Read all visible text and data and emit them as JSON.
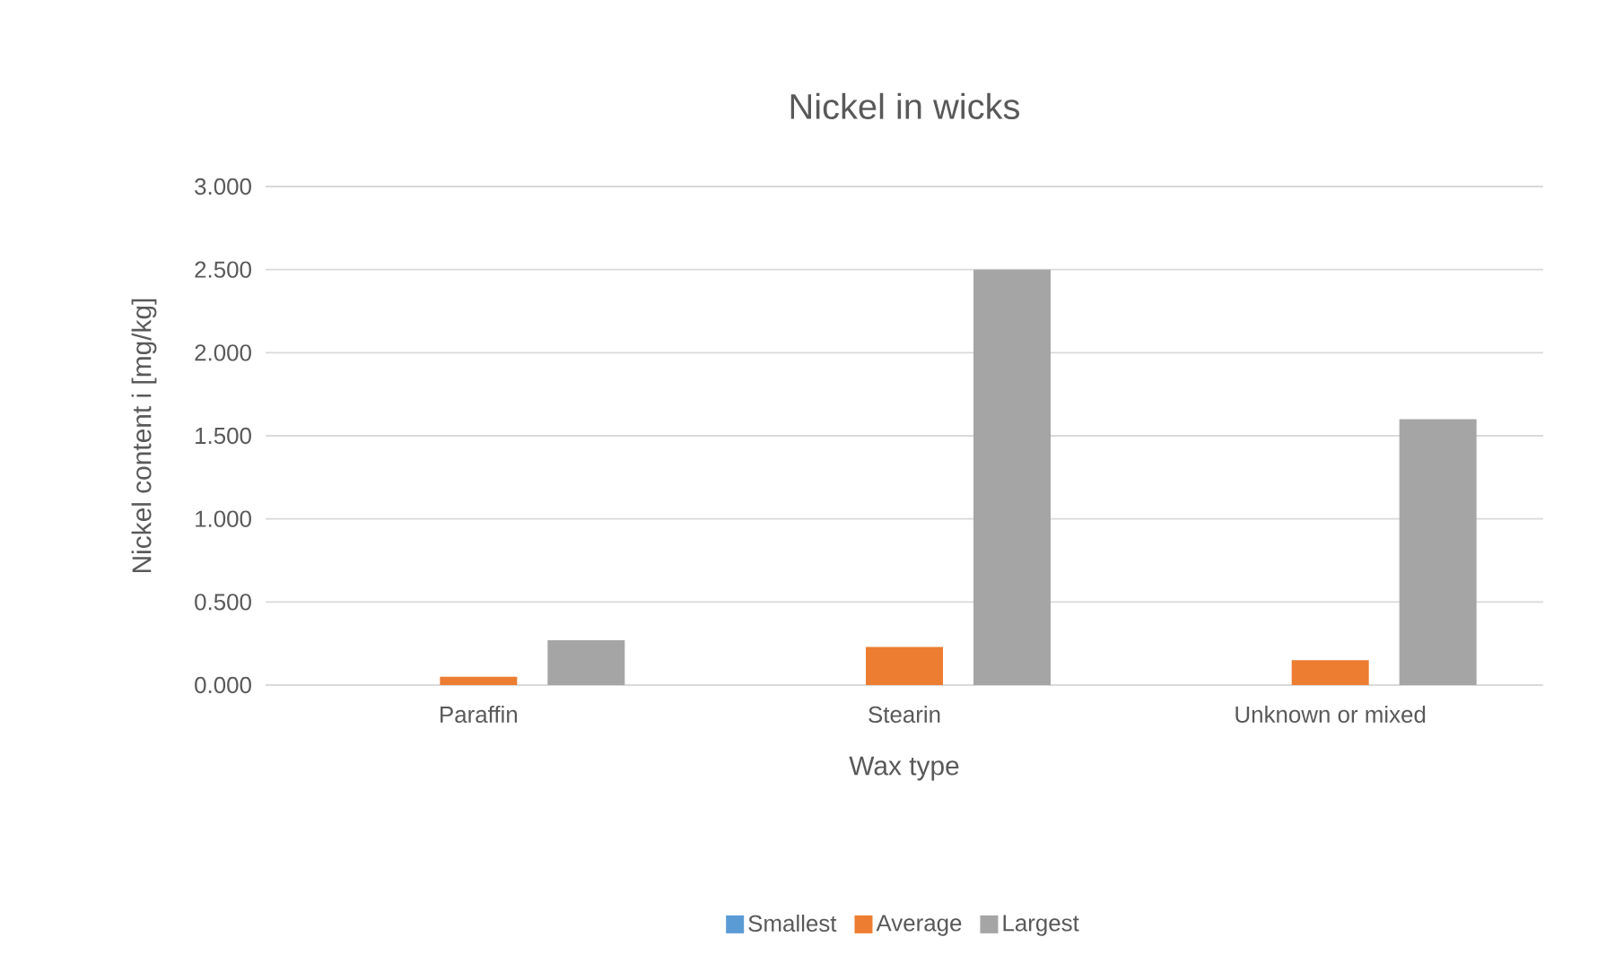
{
  "chart_data": {
    "type": "bar",
    "title": "Nickel in wicks",
    "xlabel": "Wax type",
    "ylabel": "Nickel content i [mg/kg]",
    "categories": [
      "Paraffin",
      "Stearin",
      "Unknown or mixed"
    ],
    "series": [
      {
        "name": "Smallest",
        "color": "#5b9bd5",
        "values": [
          0,
          0,
          0
        ]
      },
      {
        "name": "Average",
        "color": "#ed7d31",
        "values": [
          0.05,
          0.23,
          0.15
        ]
      },
      {
        "name": "Largest",
        "color": "#a5a5a5",
        "values": [
          0.27,
          2.5,
          1.6
        ]
      }
    ],
    "ylim": [
      0,
      3
    ],
    "yticks": [
      {
        "value": 0,
        "label": "0.000"
      },
      {
        "value": 0.5,
        "label": "0.500"
      },
      {
        "value": 1,
        "label": "1.000"
      },
      {
        "value": 1.5,
        "label": "1.500"
      },
      {
        "value": 2,
        "label": "2.000"
      },
      {
        "value": 2.5,
        "label": "2.500"
      },
      {
        "value": 3,
        "label": "3.000"
      }
    ],
    "grid": "y",
    "legend": "bottom"
  }
}
